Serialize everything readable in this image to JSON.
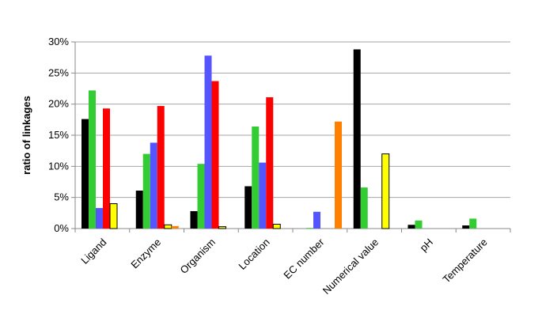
{
  "chart_data": {
    "type": "bar",
    "y_label": "ratio of linkages",
    "categories": [
      "Ligand",
      "Enzyme",
      "Organism",
      "Location",
      "EC number",
      "Numerical value",
      "pH",
      "Temperature"
    ],
    "series": [
      {
        "color": "#000000",
        "values": [
          17.6,
          6.1,
          2.8,
          6.8,
          0,
          28.8,
          0.6,
          0.5
        ]
      },
      {
        "color": "#33cc33",
        "values": [
          22.2,
          12.0,
          10.4,
          16.4,
          0.1,
          6.6,
          1.3,
          1.6
        ]
      },
      {
        "color": "#5555ff",
        "values": [
          3.3,
          13.8,
          27.8,
          10.6,
          2.7,
          0,
          0,
          0
        ]
      },
      {
        "color": "#ff0000",
        "values": [
          19.3,
          19.7,
          23.7,
          21.1,
          0,
          0,
          0,
          0
        ]
      },
      {
        "color": "#ffff00",
        "values": [
          4.0,
          0.6,
          0.3,
          0.7,
          0,
          12.0,
          0,
          0
        ]
      },
      {
        "color": "#ff8000",
        "values": [
          0,
          0.4,
          0,
          0,
          17.2,
          0,
          0,
          0
        ]
      }
    ],
    "ylim": [
      0,
      30
    ],
    "yticks": [
      {
        "value": 0,
        "label": "0%"
      },
      {
        "value": 5,
        "label": "5%"
      },
      {
        "value": 10,
        "label": "10%"
      },
      {
        "value": 15,
        "label": "15%"
      },
      {
        "value": 20,
        "label": "20%"
      },
      {
        "value": 25,
        "label": "25%"
      },
      {
        "value": 30,
        "label": "30%"
      }
    ],
    "grid": true
  }
}
